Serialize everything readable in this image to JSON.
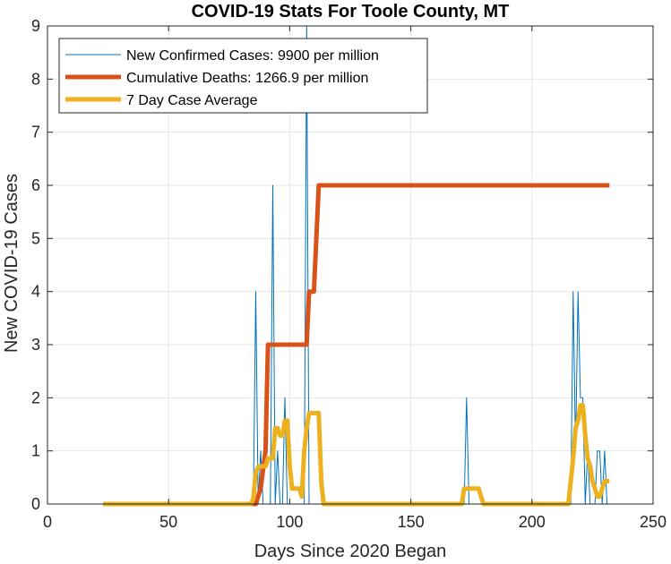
{
  "chart_data": {
    "type": "line",
    "title": "COVID-19 Stats For Toole County, MT",
    "xlabel": "Days Since 2020 Began",
    "ylabel": "New COVID-19 Cases",
    "xlim": [
      0,
      250
    ],
    "ylim": [
      0,
      9
    ],
    "xticks": [
      0,
      50,
      100,
      150,
      200,
      250
    ],
    "yticks": [
      0,
      1,
      2,
      3,
      4,
      5,
      6,
      7,
      8,
      9
    ],
    "grid": true,
    "legend_position": "top-left",
    "series": [
      {
        "name": "New Confirmed Cases: 9900 per million",
        "color": "#0072BD",
        "line_width": 1,
        "x": [
          23,
          85,
          86,
          87,
          88,
          89,
          92,
          93,
          94,
          95,
          96,
          97,
          98,
          99,
          100,
          101,
          102,
          103,
          104,
          105,
          106,
          107,
          108,
          109,
          110,
          111,
          112,
          113,
          114,
          172,
          173,
          174,
          175,
          176,
          177,
          178,
          179,
          215,
          216,
          217,
          218,
          219,
          220,
          221,
          222,
          223,
          224,
          225,
          226,
          227,
          228,
          229,
          230,
          231,
          232
        ],
        "y": [
          0,
          0,
          4,
          0,
          1,
          0,
          0,
          6,
          0,
          1,
          0,
          0,
          2,
          0,
          0,
          0,
          0,
          0,
          0,
          0,
          0,
          9,
          0,
          0,
          0,
          0,
          0,
          0,
          0,
          0,
          2,
          0,
          0,
          0,
          0,
          0,
          0,
          0,
          0,
          4,
          1,
          4,
          2,
          2,
          0,
          1,
          0,
          0,
          0,
          1,
          1,
          0,
          1,
          0,
          0
        ]
      },
      {
        "name": "Cumulative Deaths: 1266.9 per million",
        "color": "#D95319",
        "line_width": 5,
        "x": [
          23,
          86,
          88,
          90,
          91,
          107,
          108,
          110,
          112,
          232
        ],
        "y": [
          0,
          0,
          0.3,
          1,
          3,
          3,
          4,
          4,
          6,
          6
        ]
      },
      {
        "name": "7 Day Case Average",
        "color": "#EDB120",
        "line_width": 5,
        "x": [
          23,
          84,
          85,
          86,
          87,
          88,
          89,
          90,
          91,
          92,
          93,
          94,
          95,
          96,
          97,
          98,
          99,
          100,
          101,
          102,
          103,
          104,
          105,
          106,
          107,
          108,
          110,
          111,
          112,
          113,
          114,
          171,
          172,
          178,
          179,
          180,
          215,
          216,
          217,
          218,
          219,
          220,
          221,
          222,
          223,
          224,
          225,
          226,
          227,
          228,
          229,
          230,
          231,
          232
        ],
        "y": [
          0,
          0,
          0.1,
          0.6,
          0.7,
          0.71,
          0.71,
          0.71,
          0.86,
          0.86,
          0.86,
          1.43,
          1.43,
          1.29,
          1.29,
          1.57,
          1.57,
          0.71,
          0.29,
          0.29,
          0.29,
          0.29,
          0.14,
          1.0,
          1.43,
          1.71,
          1.71,
          1.71,
          1.71,
          0.43,
          0,
          0,
          0.29,
          0.29,
          0.14,
          0,
          0,
          0.43,
          0.86,
          1.43,
          1.57,
          1.86,
          1.86,
          1.29,
          0.86,
          0.71,
          0.43,
          0.29,
          0.14,
          0.14,
          0.29,
          0.43,
          0.43,
          0.43
        ]
      }
    ]
  }
}
